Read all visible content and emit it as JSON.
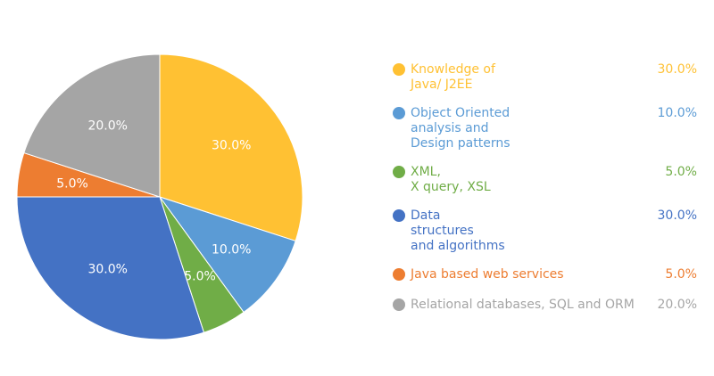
{
  "chart_data": {
    "type": "pie",
    "categories": [
      "Knowledge of\n Java/ J2EE",
      "Object Oriented\nanalysis and\nDesign patterns",
      "XML,\nX query, XSL",
      "Data\nstructures\nand algorithms",
      "Java based web services",
      "Relational databases, SQL and ORM"
    ],
    "values": [
      30,
      10,
      5,
      30,
      5,
      20
    ],
    "data_labels": [
      "30.0%",
      "10.0%",
      "5.0%",
      "30.0%",
      "5.0%",
      "20.0%"
    ],
    "colors": [
      "#FFC133",
      "#5B9BD5",
      "#70AD47",
      "#4472C4",
      "#ED7D31",
      "#A5A5A5"
    ],
    "legend_placement": "right",
    "start_angle": "top, clockwise"
  }
}
